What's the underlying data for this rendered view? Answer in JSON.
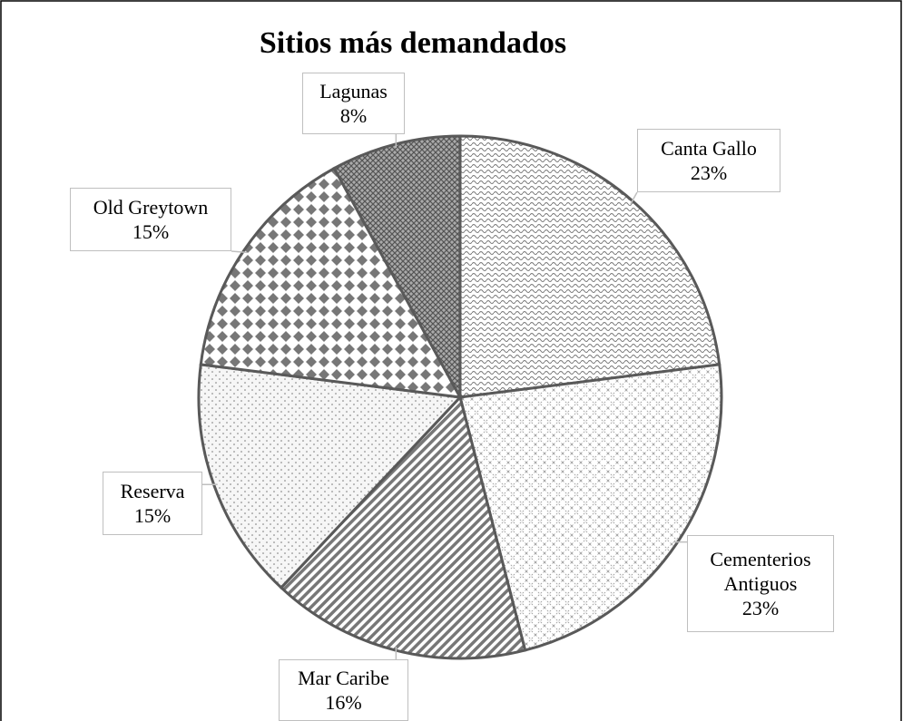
{
  "chart_data": {
    "type": "pie",
    "title": "Sitios más demandados",
    "categories": [
      "Canta Gallo",
      "Cementerios Antiguos",
      "Mar Caribe",
      "Reserva",
      "Old Greytown",
      "Lagunas"
    ],
    "values": [
      23,
      23,
      16,
      15,
      15,
      8
    ],
    "value_labels": [
      "23%",
      "23%",
      "16%",
      "15%",
      "15%",
      "8%"
    ]
  }
}
